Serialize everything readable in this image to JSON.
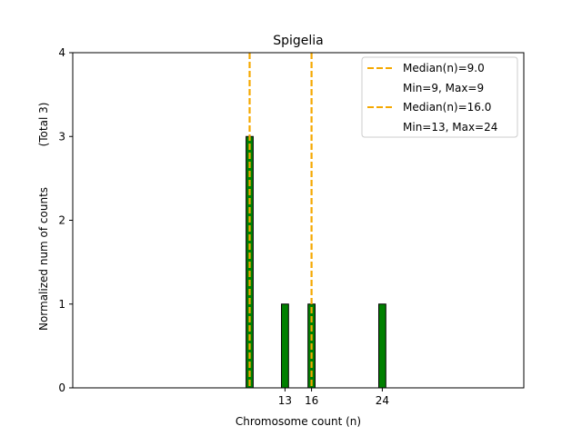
{
  "chart_data": {
    "type": "bar",
    "title": "Spigelia",
    "xlabel": "Chromosome count (n)",
    "ylabel": "Normalized num of counts",
    "ylabel_note": "(Total 3)",
    "xlim": [
      -11,
      40
    ],
    "ylim": [
      0,
      4
    ],
    "yticks": [
      0,
      1,
      2,
      3,
      4
    ],
    "xticks": [
      13,
      16,
      24
    ],
    "bar_width": 0.8,
    "bar_color": "#008000",
    "bar_edge_color": "#000000",
    "bars": [
      {
        "x": 9,
        "value": 3
      },
      {
        "x": 13,
        "value": 1
      },
      {
        "x": 16,
        "value": 1
      },
      {
        "x": 24,
        "value": 1
      }
    ],
    "median_lines": [
      {
        "x": 9.0,
        "color": "#f5a800"
      },
      {
        "x": 16.0,
        "color": "#f5a800"
      }
    ],
    "legend": {
      "placement": "top-right",
      "entries": [
        {
          "label": "Median(n)=9.0",
          "line": true
        },
        {
          "label": "Min=9, Max=9",
          "line": false
        },
        {
          "label": "Median(n)=16.0",
          "line": true
        },
        {
          "label": "Min=13, Max=24",
          "line": false
        }
      ]
    },
    "grid": false
  }
}
